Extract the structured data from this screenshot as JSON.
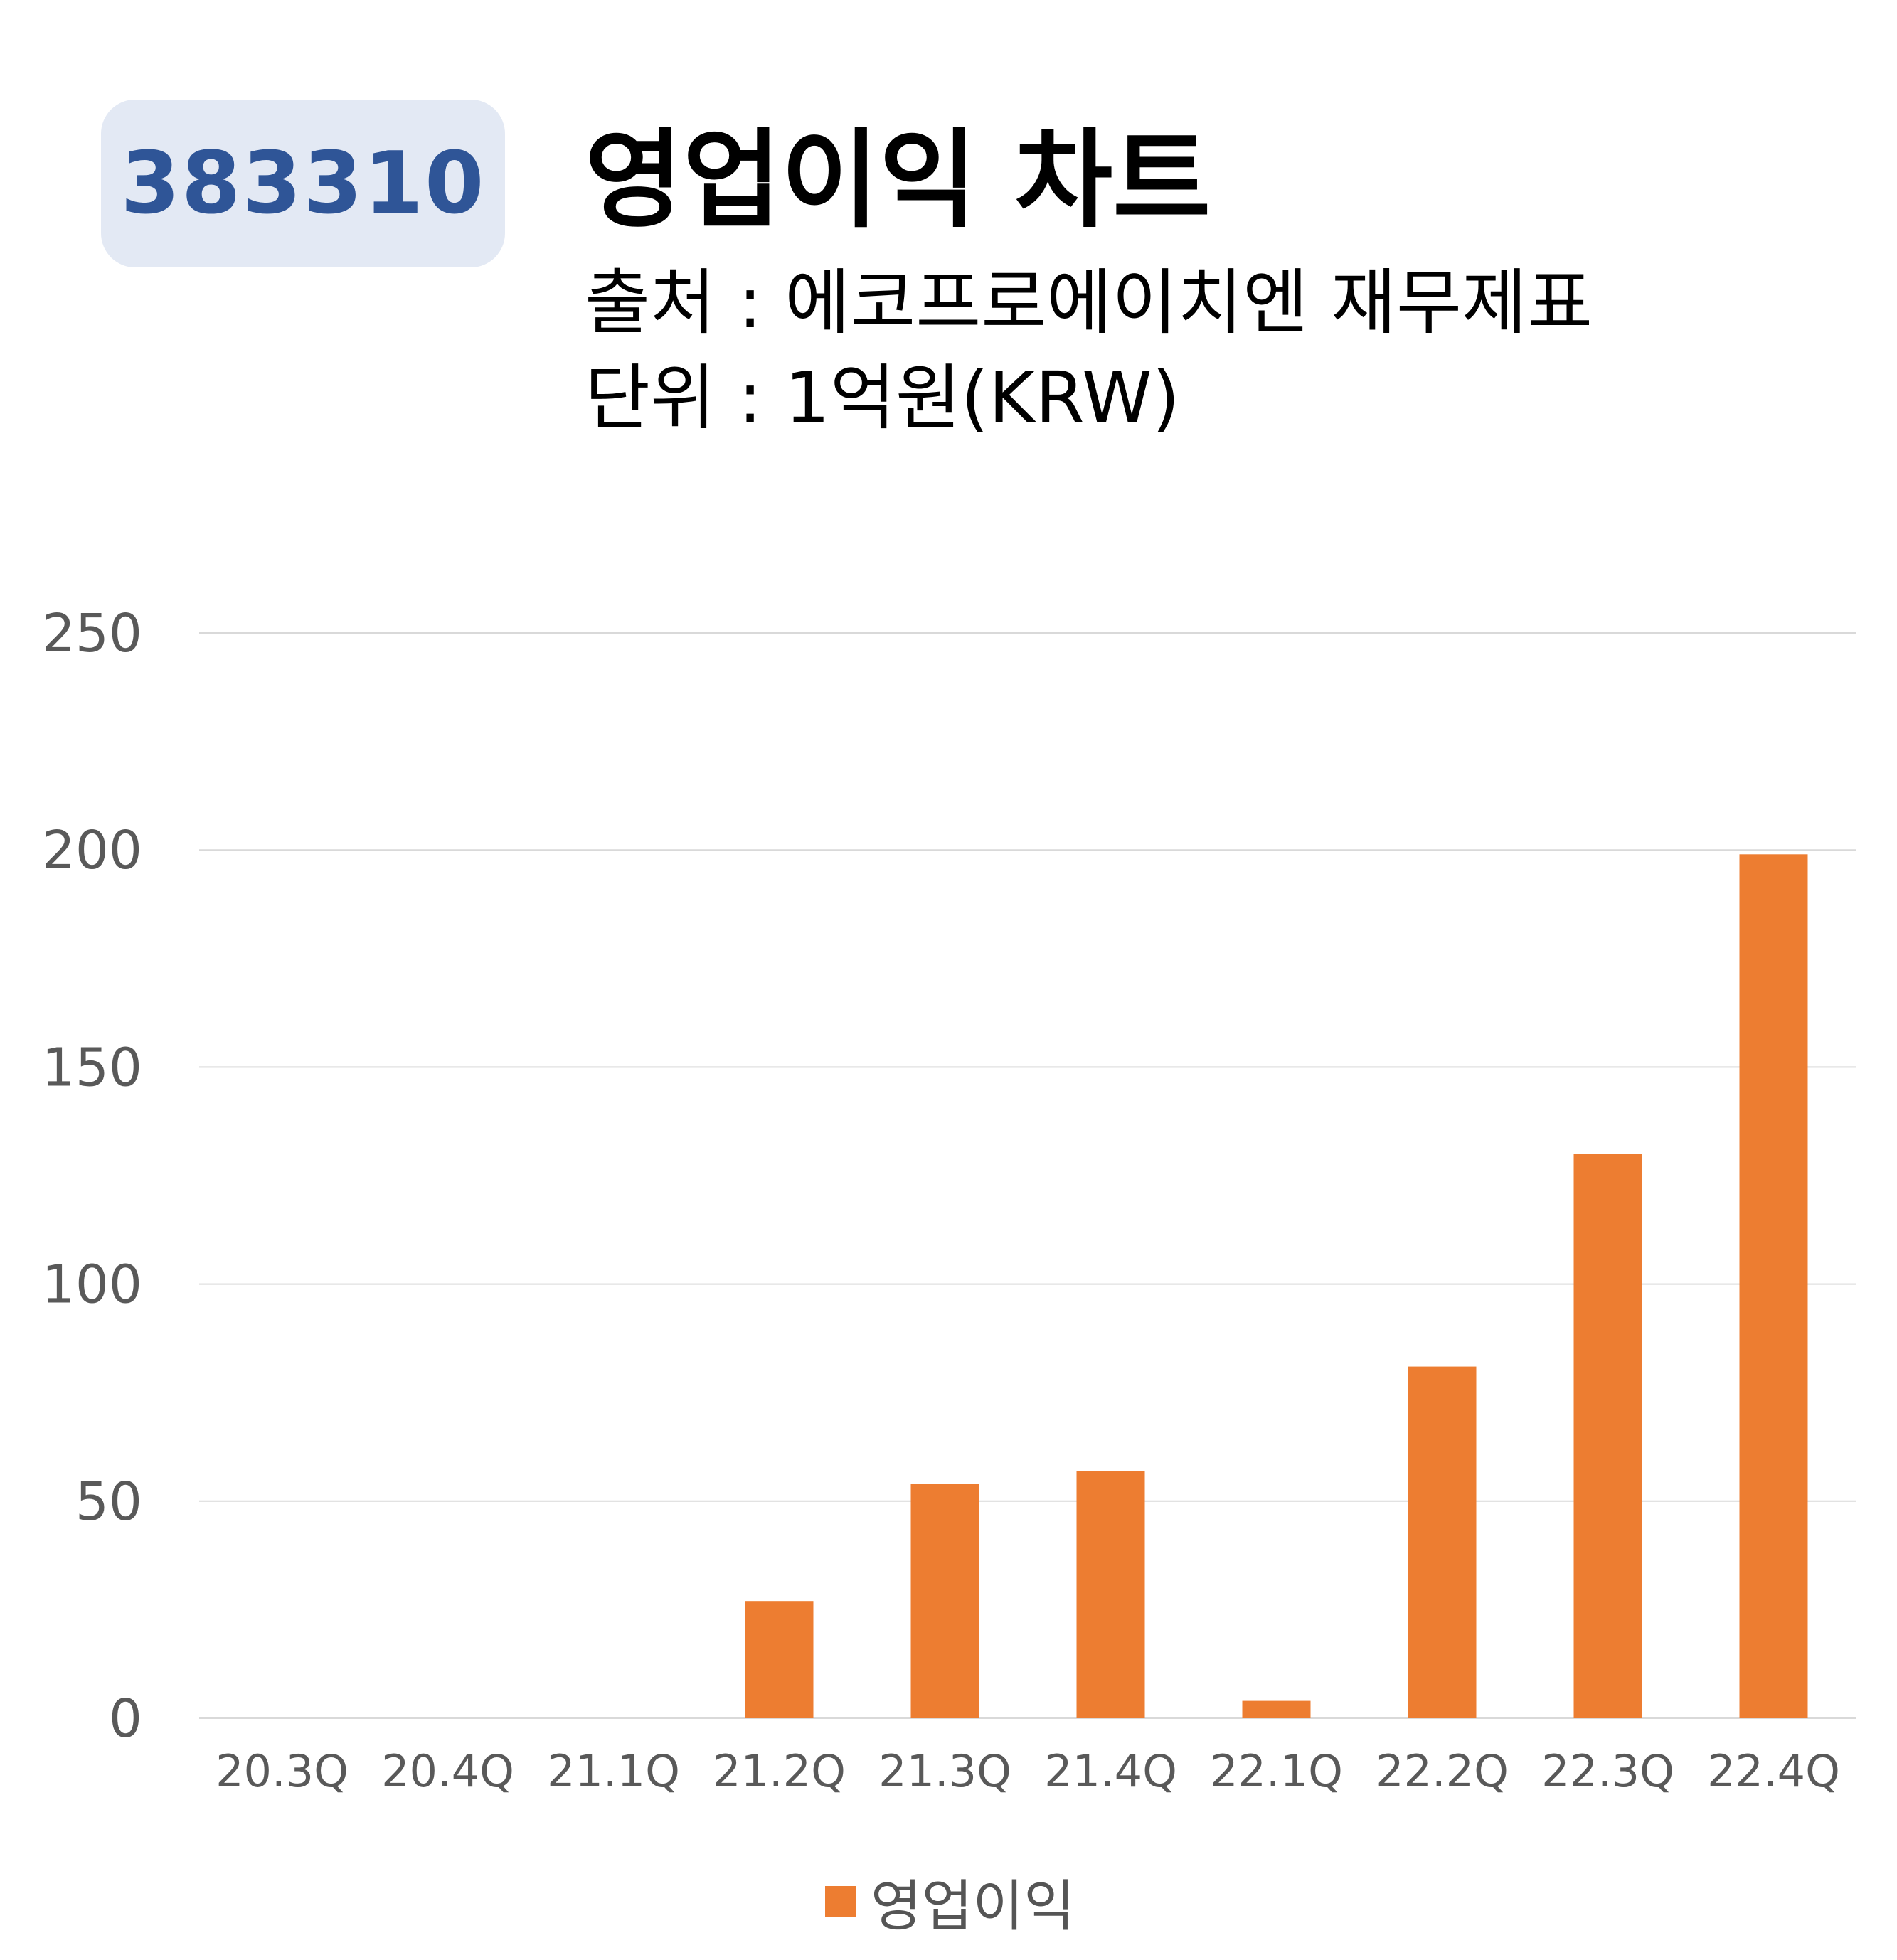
{
  "header": {
    "code": "383310",
    "title": "영업이익 차트",
    "source": "출처 : 에코프로에이치엔 재무제표",
    "unit": "단위 : 1억원(KRW)"
  },
  "colors": {
    "badge_bg": "#e3e9f4",
    "badge_text": "#2f5597",
    "bar": "#ed7d31",
    "grid": "#d9d9d9",
    "tick_text": "#595959"
  },
  "chart_data": {
    "type": "bar",
    "categories": [
      "20.3Q",
      "20.4Q",
      "21.1Q",
      "21.2Q",
      "21.3Q",
      "21.4Q",
      "22.1Q",
      "22.2Q",
      "22.3Q",
      "22.4Q"
    ],
    "series": [
      {
        "name": "영업이익",
        "values": [
          0,
          0,
          0,
          27,
          54,
          57,
          4,
          81,
          130,
          199
        ]
      }
    ],
    "yticks": [
      0,
      50,
      100,
      150,
      200,
      250
    ],
    "ylim": [
      0,
      250
    ],
    "grid": true,
    "legend_position": "bottom-center"
  }
}
